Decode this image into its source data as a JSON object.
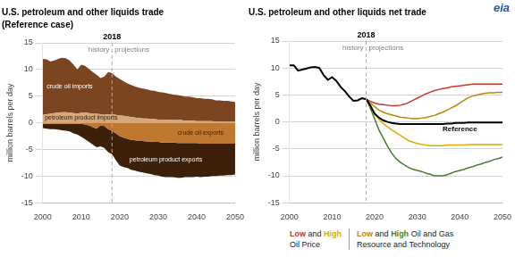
{
  "chart_data": [
    {
      "type": "area",
      "stacked": true,
      "title": "U.S. petroleum and other liquids trade",
      "subtitle": "(Reference case)",
      "ylabel": "million barrels per day",
      "x": [
        2000,
        2001,
        2002,
        2003,
        2004,
        2005,
        2006,
        2007,
        2008,
        2009,
        2010,
        2011,
        2012,
        2013,
        2014,
        2015,
        2016,
        2017,
        2018,
        2019,
        2020,
        2021,
        2022,
        2023,
        2024,
        2025,
        2026,
        2027,
        2028,
        2029,
        2030,
        2031,
        2032,
        2033,
        2034,
        2035,
        2036,
        2037,
        2038,
        2039,
        2040,
        2041,
        2042,
        2043,
        2044,
        2045,
        2046,
        2047,
        2048,
        2049,
        2050
      ],
      "series": [
        {
          "name": "petroleum product imports",
          "color": "#d4a87a",
          "values": [
            1.5,
            1.6,
            1.7,
            1.8,
            1.9,
            2.0,
            2.0,
            1.9,
            1.8,
            1.7,
            1.9,
            1.9,
            1.8,
            1.7,
            1.7,
            1.6,
            1.5,
            1.6,
            1.6,
            1.5,
            1.4,
            1.3,
            1.2,
            1.1,
            1.0,
            0.9,
            0.8,
            0.8,
            0.7,
            0.7,
            0.6,
            0.6,
            0.6,
            0.5,
            0.5,
            0.5,
            0.5,
            0.4,
            0.4,
            0.4,
            0.3,
            0.3,
            0.3,
            0.3,
            0.3,
            0.2,
            0.2,
            0.2,
            0.2,
            0.2,
            0.2
          ]
        },
        {
          "name": "crude oil imports",
          "color": "#7a4520",
          "values": [
            10.5,
            10.3,
            9.8,
            9.9,
            10.1,
            10.2,
            10.1,
            9.8,
            9.1,
            8.3,
            9.0,
            8.8,
            8.3,
            7.8,
            7.3,
            6.8,
            7.2,
            7.9,
            7.7,
            7.2,
            6.8,
            6.5,
            6.2,
            6.0,
            5.8,
            5.7,
            5.6,
            5.5,
            5.4,
            5.3,
            5.2,
            5.1,
            5.0,
            4.9,
            4.8,
            4.7,
            4.6,
            4.5,
            4.5,
            4.4,
            4.3,
            4.3,
            4.2,
            4.2,
            4.1,
            4.0,
            4.0,
            3.9,
            3.9,
            3.8,
            3.7
          ]
        },
        {
          "name": "crude oil exports",
          "color": "#c07830",
          "values": [
            -0.2,
            -0.2,
            -0.2,
            -0.2,
            -0.2,
            -0.2,
            -0.2,
            -0.2,
            -0.2,
            -0.2,
            -0.2,
            -0.3,
            -0.5,
            -0.8,
            -1.1,
            -0.5,
            -0.6,
            -1.2,
            -1.5,
            -2.0,
            -2.5,
            -2.8,
            -3.0,
            -3.2,
            -3.3,
            -3.4,
            -3.4,
            -3.5,
            -3.5,
            -3.6,
            -3.6,
            -3.7,
            -3.7,
            -3.7,
            -3.7,
            -3.8,
            -3.8,
            -3.8,
            -3.8,
            -3.8,
            -3.8,
            -3.9,
            -3.9,
            -3.9,
            -3.9,
            -3.9,
            -3.9,
            -3.9,
            -3.9,
            -3.9,
            -3.9
          ]
        },
        {
          "name": "petroleum product exports",
          "color": "#3d200a",
          "values": [
            -0.8,
            -0.9,
            -1.0,
            -1.0,
            -1.1,
            -1.2,
            -1.3,
            -1.4,
            -1.8,
            -2.0,
            -2.4,
            -2.8,
            -3.1,
            -3.3,
            -3.5,
            -3.9,
            -4.1,
            -4.3,
            -4.4,
            -5.0,
            -5.5,
            -5.5,
            -5.5,
            -5.6,
            -5.7,
            -5.8,
            -5.9,
            -6.0,
            -6.1,
            -6.2,
            -6.3,
            -6.4,
            -6.5,
            -6.5,
            -6.5,
            -6.5,
            -6.5,
            -6.4,
            -6.4,
            -6.4,
            -6.3,
            -6.3,
            -6.2,
            -6.2,
            -6.1,
            -6.1,
            -6.0,
            -6.0,
            -5.9,
            -5.9,
            -5.8
          ]
        }
      ],
      "xlim": [
        2000,
        2050
      ],
      "xticks": [
        2000,
        2010,
        2020,
        2030,
        2040,
        2050
      ],
      "ylim": [
        -15,
        15
      ],
      "yticks": [
        -15,
        -10,
        -5,
        0,
        5,
        10,
        15
      ],
      "grid": true,
      "annotations": [
        {
          "text": "2018",
          "x": 2018,
          "line_style": "dashed"
        },
        {
          "text": "history"
        },
        {
          "text": "projections"
        }
      ]
    },
    {
      "type": "line",
      "title": "U.S. petroleum and other liquids net trade",
      "ylabel": "million barrels per day",
      "x": [
        2000,
        2001,
        2002,
        2003,
        2004,
        2005,
        2006,
        2007,
        2008,
        2009,
        2010,
        2011,
        2012,
        2013,
        2014,
        2015,
        2016,
        2017,
        2018,
        2019,
        2020,
        2021,
        2022,
        2023,
        2024,
        2025,
        2026,
        2027,
        2028,
        2029,
        2030,
        2031,
        2032,
        2033,
        2034,
        2035,
        2036,
        2037,
        2038,
        2039,
        2040,
        2041,
        2042,
        2043,
        2044,
        2045,
        2046,
        2047,
        2048,
        2049,
        2050
      ],
      "series": [
        {
          "name": "Reference",
          "color": "#000000",
          "values": [
            10.5,
            10.5,
            9.5,
            9.7,
            9.9,
            10.1,
            10.2,
            10.0,
            8.7,
            7.8,
            8.3,
            7.6,
            6.5,
            5.7,
            4.7,
            3.9,
            4.0,
            4.4,
            4.2,
            3.0,
            1.5,
            0.8,
            0.3,
            0.0,
            -0.2,
            -0.3,
            -0.4,
            -0.4,
            -0.4,
            -0.4,
            -0.4,
            -0.4,
            -0.4,
            -0.4,
            -0.4,
            -0.4,
            -0.4,
            -0.3,
            -0.3,
            -0.2,
            -0.2,
            -0.2,
            -0.1,
            -0.1,
            -0.1,
            -0.1,
            -0.1,
            -0.1,
            -0.1,
            -0.1,
            -0.1
          ]
        },
        {
          "name": "Low",
          "color": "#c0392b",
          "values": [
            null,
            null,
            null,
            null,
            null,
            null,
            null,
            null,
            null,
            null,
            null,
            null,
            null,
            null,
            null,
            null,
            null,
            null,
            4.2,
            3.8,
            3.5,
            3.3,
            3.2,
            3.1,
            3.0,
            3.0,
            3.1,
            3.3,
            3.6,
            4.0,
            4.4,
            4.8,
            5.2,
            5.5,
            5.8,
            6.0,
            6.2,
            6.3,
            6.5,
            6.6,
            6.7,
            6.8,
            6.9,
            7.0,
            7.0,
            7.0,
            7.0,
            7.0,
            7.0,
            7.0,
            7.0
          ]
        },
        {
          "name": "High",
          "color": "#e0a800",
          "values": [
            null,
            null,
            null,
            null,
            null,
            null,
            null,
            null,
            null,
            null,
            null,
            null,
            null,
            null,
            null,
            null,
            null,
            null,
            4.2,
            3.0,
            1.5,
            0.5,
            -0.3,
            -0.9,
            -1.5,
            -2.0,
            -2.5,
            -3.0,
            -3.5,
            -3.8,
            -4.0,
            -4.2,
            -4.3,
            -4.4,
            -4.4,
            -4.4,
            -4.4,
            -4.3,
            -4.3,
            -4.3,
            -4.3,
            -4.3,
            -4.2,
            -4.2,
            -4.2,
            -4.2,
            -4.2,
            -4.2,
            -4.2,
            -4.2,
            -4.2
          ]
        },
        {
          "name": "Low",
          "color": "#b8860b",
          "values": [
            null,
            null,
            null,
            null,
            null,
            null,
            null,
            null,
            null,
            null,
            null,
            null,
            null,
            null,
            null,
            null,
            null,
            null,
            4.2,
            3.5,
            2.8,
            2.2,
            1.8,
            1.5,
            1.3,
            1.1,
            0.9,
            0.8,
            0.7,
            0.6,
            0.6,
            0.7,
            0.8,
            1.0,
            1.2,
            1.5,
            1.8,
            2.2,
            2.6,
            3.0,
            3.5,
            4.0,
            4.5,
            4.8,
            5.0,
            5.2,
            5.3,
            5.4,
            5.4,
            5.5,
            5.5
          ]
        },
        {
          "name": "High",
          "color": "#4a7c2f",
          "values": [
            null,
            null,
            null,
            null,
            null,
            null,
            null,
            null,
            null,
            null,
            null,
            null,
            null,
            null,
            null,
            null,
            null,
            null,
            4.2,
            2.5,
            0.5,
            -1.5,
            -3.0,
            -4.5,
            -5.8,
            -6.8,
            -7.5,
            -8.0,
            -8.5,
            -8.8,
            -9.0,
            -9.2,
            -9.5,
            -9.7,
            -10.0,
            -10.0,
            -10.0,
            -9.8,
            -9.5,
            -9.2,
            -9.0,
            -8.8,
            -8.5,
            -8.3,
            -8.0,
            -7.8,
            -7.5,
            -7.3,
            -7.0,
            -6.8,
            -6.5
          ]
        }
      ],
      "xlim": [
        2000,
        2050
      ],
      "xticks": [
        2000,
        2010,
        2020,
        2030,
        2040,
        2050
      ],
      "ylim": [
        -15,
        15
      ],
      "yticks": [
        -15,
        -10,
        -5,
        0,
        5,
        10,
        15
      ],
      "grid": true,
      "annotations": [
        {
          "text": "2018",
          "x": 2018,
          "line_style": "dashed"
        },
        {
          "text": "history"
        },
        {
          "text": "projections"
        },
        {
          "text": "eia",
          "color": "#2255aa"
        },
        {
          "text": "and"
        },
        {
          "text": "Oil Price"
        },
        {
          "text": "and"
        },
        {
          "text": "Oil and Gas"
        },
        {
          "text": "Resource and Technology"
        }
      ]
    }
  ]
}
